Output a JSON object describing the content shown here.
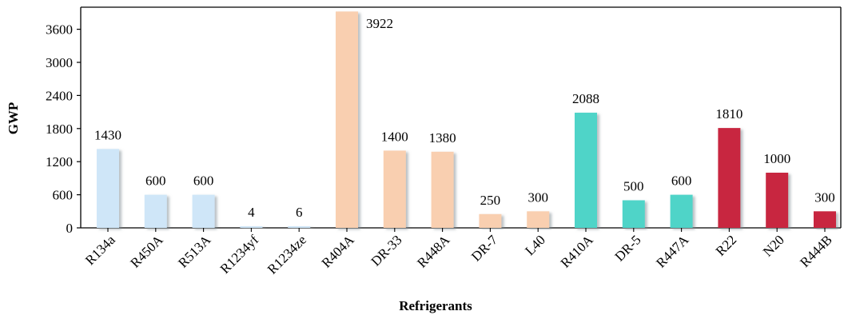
{
  "chart_data": {
    "type": "bar",
    "title": "",
    "xlabel": "Refrigerants",
    "ylabel": "GWP",
    "ylim": [
      0,
      4000
    ],
    "yticks": [
      0,
      600,
      1200,
      1800,
      2400,
      3000,
      3600
    ],
    "grid": false,
    "legend": "none",
    "categories": [
      "R134a",
      "R450A",
      "R513A",
      "R1234yf",
      "R1234ze",
      "R404A",
      "DR-33",
      "R448A",
      "DR-7",
      "L40",
      "R410A",
      "DR-5",
      "R447A",
      "R22",
      "N20",
      "R444B"
    ],
    "values": [
      1430,
      600,
      600,
      4,
      6,
      3922,
      1400,
      1380,
      250,
      300,
      2088,
      500,
      600,
      1810,
      1000,
      300
    ],
    "data_labels": [
      "1430",
      "600",
      "600",
      "4",
      "6",
      "3922",
      "1400",
      "1380",
      "250",
      "300",
      "2088",
      "500",
      "600",
      "1810",
      "1000",
      "300"
    ],
    "bar_colors": [
      "#cfe6f8",
      "#cfe6f8",
      "#cfe6f8",
      "#cfe6f8",
      "#cfe6f8",
      "#f9cfb0",
      "#f9cfb0",
      "#f9cfb0",
      "#f9cfb0",
      "#f9cfb0",
      "#4fd4c8",
      "#4fd4c8",
      "#4fd4c8",
      "#c8283f",
      "#c8283f",
      "#c8283f"
    ]
  }
}
